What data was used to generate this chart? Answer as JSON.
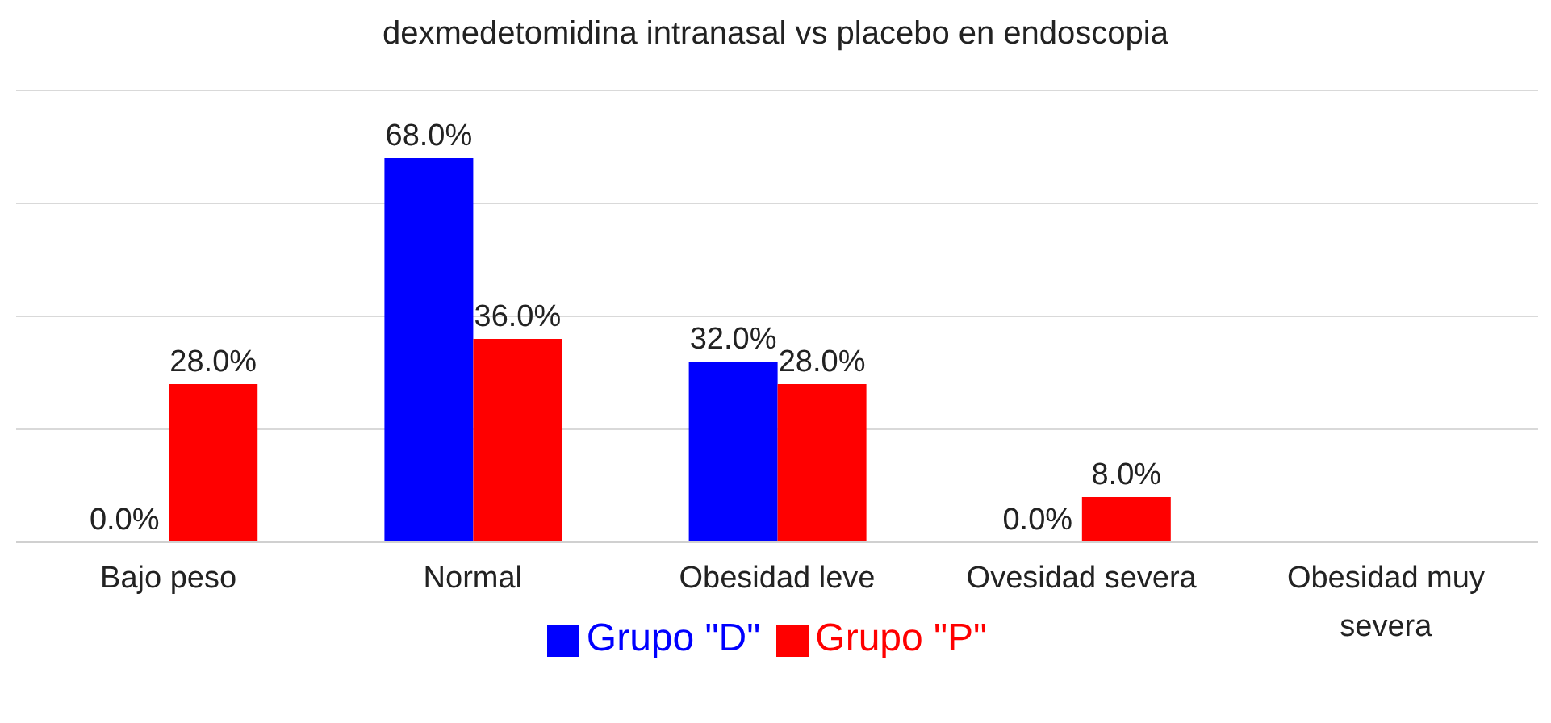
{
  "chart_data": {
    "type": "bar",
    "title": "dexmedetomidina intranasal vs placebo en endoscopia",
    "categories": [
      "Bajo peso",
      "Normal",
      "Obesidad leve",
      "Ovesidad severa",
      "Obesidad muy severa"
    ],
    "series": [
      {
        "name": "Grupo \"D\"",
        "color": "#0000ff",
        "values": [
          0,
          68,
          32,
          0,
          null
        ],
        "value_labels": [
          "0.0%",
          "68.0%",
          "32.0%",
          "0.0%",
          null
        ]
      },
      {
        "name": "Grupo \"P\"",
        "color": "#ff0000",
        "values": [
          28,
          36,
          28,
          8,
          null
        ],
        "value_labels": [
          "28.0%",
          "36.0%",
          "28.0%",
          "8.0%",
          null
        ]
      }
    ],
    "ylim": [
      0,
      80
    ],
    "yticks": [
      {
        "value": 0,
        "label": null
      },
      {
        "value": 20,
        "label": null
      },
      {
        "value": 40,
        "label": null
      },
      {
        "value": 60,
        "label": null
      },
      {
        "value": 80,
        "label": null
      }
    ],
    "tick_labels": "x",
    "grid": "y",
    "legend": "bottom"
  }
}
